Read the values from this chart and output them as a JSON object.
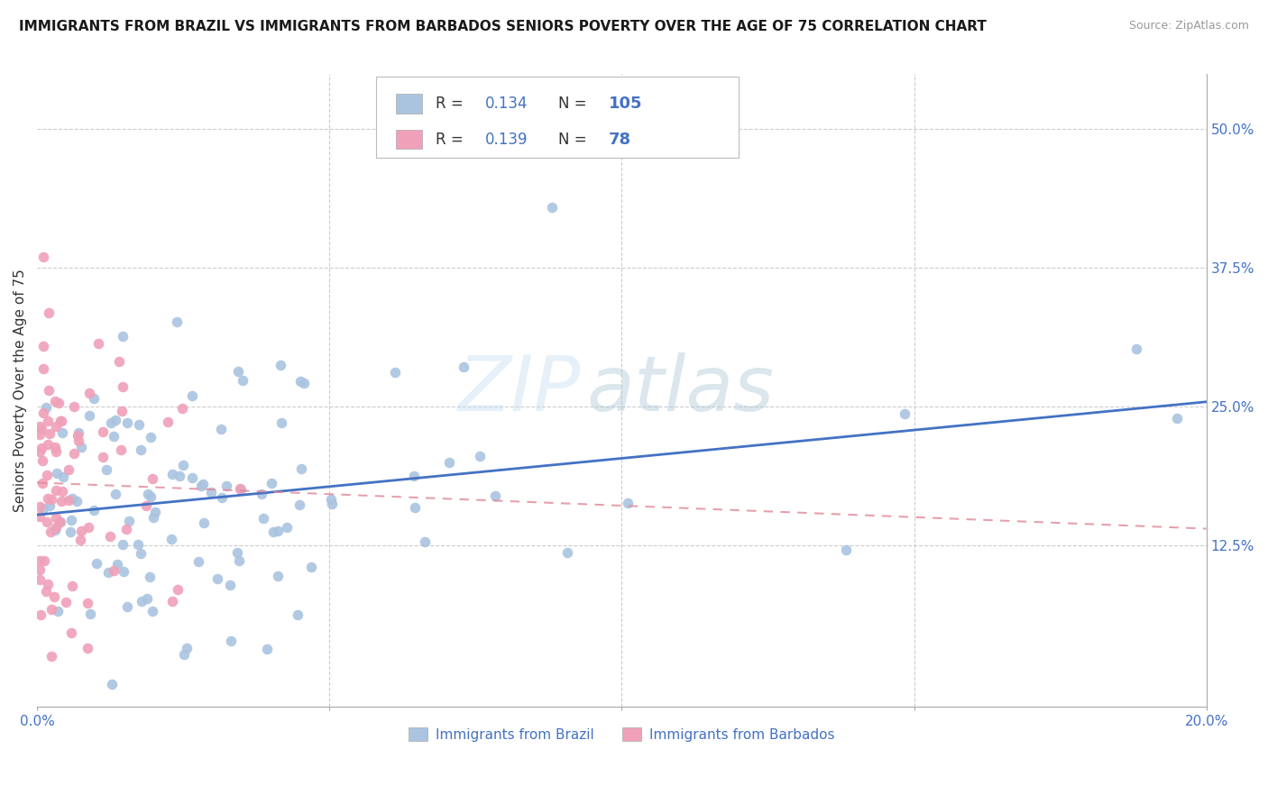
{
  "title": "IMMIGRANTS FROM BRAZIL VS IMMIGRANTS FROM BARBADOS SENIORS POVERTY OVER THE AGE OF 75 CORRELATION CHART",
  "source": "Source: ZipAtlas.com",
  "ylabel": "Seniors Poverty Over the Age of 75",
  "xlim": [
    0.0,
    0.2
  ],
  "ylim": [
    -0.02,
    0.55
  ],
  "xticks": [
    0.0,
    0.05,
    0.1,
    0.15,
    0.2
  ],
  "xtick_labels": [
    "0.0%",
    "",
    "",
    "",
    "20.0%"
  ],
  "yticks_right": [
    0.125,
    0.25,
    0.375,
    0.5
  ],
  "ytick_labels_right": [
    "12.5%",
    "25.0%",
    "37.5%",
    "50.0%"
  ],
  "brazil_color": "#aac4e0",
  "barbados_color": "#f0a0b8",
  "brazil_line_color": "#4472c4",
  "barbados_line_color": "#e08898",
  "legend_label_brazil": "Immigrants from Brazil",
  "legend_label_barbados": "Immigrants from Barbados",
  "watermark_zip": "ZIP",
  "watermark_atlas": "atlas",
  "brazil_r": "0.134",
  "brazil_n": "105",
  "barbados_r": "0.139",
  "barbados_n": "78"
}
